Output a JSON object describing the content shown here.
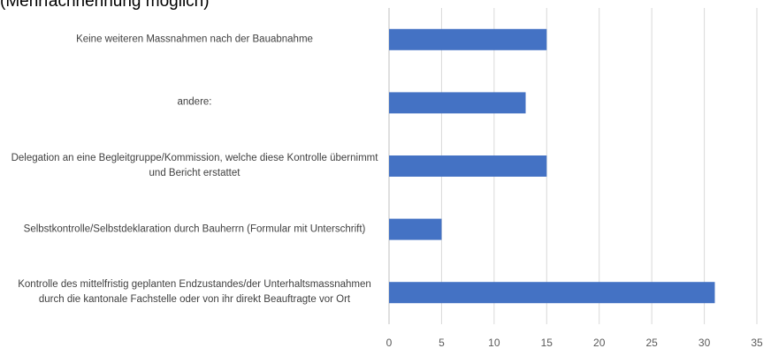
{
  "chart_data": {
    "type": "bar",
    "orientation": "horizontal",
    "subtitle": "(Mehrfachnennung möglich)",
    "categories": [
      "Keine weiteren Massnahmen nach der Bauabnahme",
      "andere:",
      "Delegation an eine Begleitgruppe/Kommission, welche diese Kontrolle übernimmt und Bericht erstattet",
      "Selbstkontrolle/Selbstdeklaration durch Bauherrn (Formular mit Unterschrift)",
      "Kontrolle des mittelfristig geplanten Endzustandes/der Unterhaltsmassnahmen durch die kantonale Fachstelle oder von ihr direkt Beauftragte vor Ort"
    ],
    "values": [
      15,
      13,
      15,
      5,
      31
    ],
    "color": "#4472c4",
    "xlim": [
      0,
      35
    ],
    "xticks": [
      0,
      5,
      10,
      15,
      20,
      25,
      30,
      35
    ],
    "grid": true
  }
}
